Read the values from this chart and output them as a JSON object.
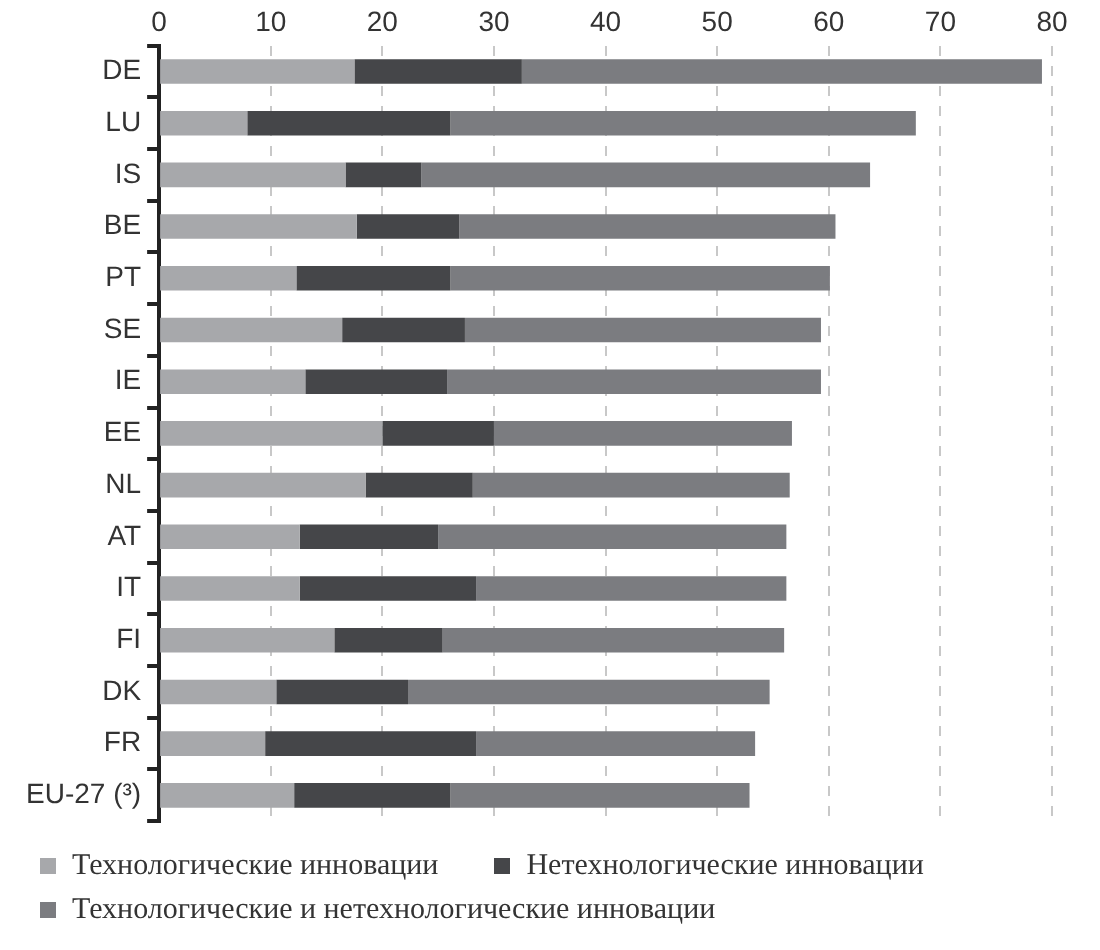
{
  "chart_data": {
    "type": "bar",
    "orientation": "horizontal",
    "stacked": true,
    "categories": [
      "DE",
      "LU",
      "IS",
      "BE",
      "PT",
      "SE",
      "IE",
      "EE",
      "NL",
      "AT",
      "IT",
      "FI",
      "DK",
      "FR",
      "EU-27 (³)"
    ],
    "series": [
      {
        "name": "Технологические инновации",
        "color": "#a7a8ab",
        "values": [
          17.5,
          7.9,
          16.7,
          17.7,
          12.3,
          16.4,
          13.1,
          20.0,
          18.5,
          12.6,
          12.6,
          15.7,
          10.5,
          9.5,
          12.1
        ]
      },
      {
        "name": "Нетехнологические инновации",
        "color": "#454649",
        "values": [
          15.0,
          18.2,
          6.8,
          9.2,
          13.8,
          11.0,
          12.7,
          10.0,
          9.6,
          12.4,
          15.8,
          9.7,
          11.8,
          18.9,
          14.0
        ]
      },
      {
        "name": "Технологические и нетехнологические инновации",
        "color": "#7b7c80",
        "values": [
          46.6,
          41.7,
          40.2,
          33.7,
          34.0,
          31.9,
          33.5,
          26.7,
          28.4,
          31.2,
          27.8,
          30.6,
          32.4,
          25.0,
          26.8
        ]
      }
    ],
    "xlim": [
      0,
      80
    ],
    "xticks": [
      0,
      10,
      20,
      30,
      40,
      50,
      60,
      70,
      80
    ],
    "grid": "x",
    "legend": "bottom"
  }
}
